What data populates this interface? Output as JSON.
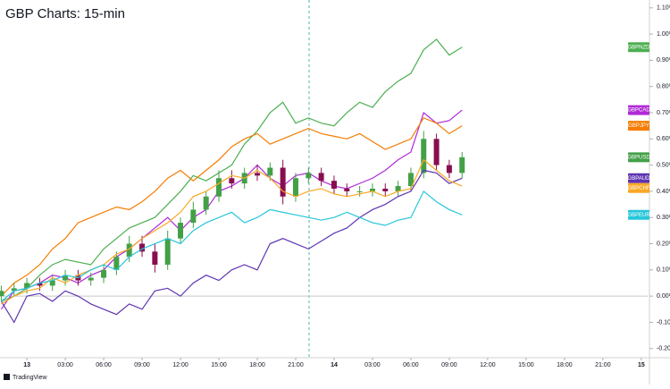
{
  "chart_data": {
    "type": "line",
    "title": "GBP Charts: 15-min",
    "footer": "TradingView",
    "x": [
      -2,
      -1,
      0,
      1,
      2,
      3,
      4,
      5,
      6,
      7,
      8,
      9,
      10,
      11,
      12,
      13,
      14,
      15,
      16,
      17,
      18,
      19,
      20,
      21,
      22,
      23,
      24,
      25,
      26,
      27,
      28,
      29,
      30,
      31,
      32,
      33,
      34
    ],
    "xlim": [
      -2.1,
      48.5
    ],
    "xticks": [
      {
        "value": 0,
        "label": "13"
      },
      {
        "value": 3,
        "label": "03:00"
      },
      {
        "value": 6,
        "label": "06:00"
      },
      {
        "value": 9,
        "label": "09:00"
      },
      {
        "value": 12,
        "label": "12:00"
      },
      {
        "value": 15,
        "label": "15:00"
      },
      {
        "value": 18,
        "label": "18:00"
      },
      {
        "value": 21,
        "label": "21:00"
      },
      {
        "value": 24,
        "label": "14"
      },
      {
        "value": 27,
        "label": "03:00"
      },
      {
        "value": 30,
        "label": "06:00"
      },
      {
        "value": 33,
        "label": "09:00"
      },
      {
        "value": 36,
        "label": "12:00"
      },
      {
        "value": 39,
        "label": "15:00"
      },
      {
        "value": 42,
        "label": "18:00"
      },
      {
        "value": 45,
        "label": "21:00"
      },
      {
        "value": 48,
        "label": "15"
      }
    ],
    "ylim": [
      -0.235,
      1.13
    ],
    "yticks": [
      {
        "value": 1.1,
        "label": "1.10%"
      },
      {
        "value": 1.0,
        "label": "1.00%"
      },
      {
        "value": 0.9,
        "label": "0.90%"
      },
      {
        "value": 0.8,
        "label": "0.80%"
      },
      {
        "value": 0.7,
        "label": "0.70%"
      },
      {
        "value": 0.6,
        "label": "0.60%"
      },
      {
        "value": 0.5,
        "label": "0.50%"
      },
      {
        "value": 0.4,
        "label": "0.40%"
      },
      {
        "value": 0.3,
        "label": "0.30%"
      },
      {
        "value": 0.2,
        "label": "0.20%"
      },
      {
        "value": 0.1,
        "label": "0.10%"
      },
      {
        "value": 0,
        "label": "0.00%"
      },
      {
        "value": -0.1,
        "label": "-0.10%"
      },
      {
        "value": -0.2,
        "label": "-0.20%"
      }
    ],
    "series": [
      {
        "name": "GBPNZD",
        "color": "#4caf50",
        "values": [
          -0.02,
          0.0,
          0.03,
          0.08,
          0.12,
          0.14,
          0.13,
          0.12,
          0.18,
          0.22,
          0.26,
          0.28,
          0.3,
          0.35,
          0.4,
          0.46,
          0.44,
          0.47,
          0.5,
          0.58,
          0.63,
          0.7,
          0.74,
          0.66,
          0.68,
          0.66,
          0.65,
          0.7,
          0.74,
          0.72,
          0.78,
          0.82,
          0.85,
          0.94,
          0.98,
          0.92,
          0.95
        ]
      },
      {
        "name": "GBPCAD",
        "color": "#b02ad8",
        "values": [
          -0.05,
          0.02,
          0.03,
          0.05,
          0.08,
          0.07,
          0.05,
          0.08,
          0.1,
          0.15,
          0.18,
          0.22,
          0.26,
          0.3,
          0.25,
          0.3,
          0.33,
          0.4,
          0.42,
          0.45,
          0.5,
          0.45,
          0.42,
          0.46,
          0.47,
          0.44,
          0.42,
          0.41,
          0.43,
          0.45,
          0.48,
          0.52,
          0.55,
          0.7,
          0.66,
          0.67,
          0.71
        ]
      },
      {
        "name": "GBPJPY",
        "color": "#f57c00",
        "values": [
          0.0,
          0.05,
          0.08,
          0.12,
          0.18,
          0.22,
          0.28,
          0.3,
          0.32,
          0.34,
          0.33,
          0.36,
          0.4,
          0.45,
          0.48,
          0.44,
          0.48,
          0.52,
          0.57,
          0.6,
          0.62,
          0.58,
          0.6,
          0.62,
          0.64,
          0.62,
          0.61,
          0.6,
          0.62,
          0.59,
          0.56,
          0.58,
          0.6,
          0.68,
          0.66,
          0.62,
          0.65
        ]
      },
      {
        "name": "GBPUSD",
        "type": "candlestick",
        "color": "#43a047",
        "down_color": "#880e4f",
        "open": [
          0.0,
          0.02,
          0.03,
          0.05,
          0.04,
          0.06,
          0.08,
          0.06,
          0.07,
          0.1,
          0.15,
          0.2,
          0.17,
          0.12,
          0.22,
          0.28,
          0.33,
          0.38,
          0.45,
          0.43,
          0.47,
          0.46,
          0.49,
          0.38,
          0.45,
          0.47,
          0.44,
          0.41,
          0.4,
          0.4,
          0.41,
          0.4,
          0.42,
          0.47,
          0.6,
          0.5,
          0.47
        ],
        "high": [
          0.04,
          0.05,
          0.07,
          0.07,
          0.08,
          0.1,
          0.1,
          0.09,
          0.12,
          0.17,
          0.23,
          0.23,
          0.2,
          0.25,
          0.3,
          0.36,
          0.4,
          0.48,
          0.48,
          0.49,
          0.5,
          0.51,
          0.52,
          0.47,
          0.49,
          0.49,
          0.46,
          0.43,
          0.42,
          0.43,
          0.43,
          0.44,
          0.49,
          0.63,
          0.62,
          0.52,
          0.55
        ],
        "low": [
          -0.02,
          0.0,
          0.01,
          0.02,
          0.02,
          0.04,
          0.04,
          0.04,
          0.05,
          0.08,
          0.13,
          0.15,
          0.09,
          0.1,
          0.2,
          0.26,
          0.31,
          0.36,
          0.41,
          0.41,
          0.44,
          0.44,
          0.35,
          0.36,
          0.43,
          0.42,
          0.39,
          0.38,
          0.38,
          0.38,
          0.38,
          0.38,
          0.4,
          0.45,
          0.48,
          0.45,
          0.45
        ],
        "close": [
          0.02,
          0.03,
          0.05,
          0.04,
          0.06,
          0.08,
          0.06,
          0.07,
          0.1,
          0.15,
          0.2,
          0.17,
          0.12,
          0.22,
          0.28,
          0.33,
          0.38,
          0.45,
          0.43,
          0.47,
          0.46,
          0.49,
          0.38,
          0.45,
          0.47,
          0.44,
          0.41,
          0.4,
          0.4,
          0.41,
          0.4,
          0.42,
          0.47,
          0.6,
          0.5,
          0.47,
          0.53
        ]
      },
      {
        "name": "GBPAUD",
        "color": "#5e35b1",
        "values": [
          -0.02,
          -0.1,
          0.0,
          0.01,
          -0.02,
          0.02,
          0.0,
          -0.03,
          -0.05,
          -0.07,
          -0.03,
          -0.05,
          0.02,
          0.03,
          0.0,
          0.05,
          0.08,
          0.06,
          0.1,
          0.12,
          0.1,
          0.2,
          0.22,
          0.2,
          0.18,
          0.21,
          0.24,
          0.26,
          0.3,
          0.33,
          0.35,
          0.38,
          0.4,
          0.48,
          0.47,
          0.43,
          0.45
        ]
      },
      {
        "name": "GBPCHF",
        "color": "#f9a825",
        "values": [
          -0.03,
          0.0,
          0.02,
          0.03,
          0.07,
          0.05,
          0.08,
          0.1,
          0.12,
          0.16,
          0.18,
          0.22,
          0.25,
          0.28,
          0.32,
          0.38,
          0.4,
          0.43,
          0.46,
          0.45,
          0.48,
          0.45,
          0.4,
          0.38,
          0.4,
          0.41,
          0.39,
          0.38,
          0.39,
          0.4,
          0.38,
          0.4,
          0.41,
          0.52,
          0.48,
          0.44,
          0.42
        ]
      },
      {
        "name": "GBPEUR",
        "color": "#26c6da",
        "values": [
          -0.02,
          0.02,
          0.03,
          0.05,
          0.06,
          0.08,
          0.07,
          0.1,
          0.12,
          0.1,
          0.15,
          0.18,
          0.2,
          0.22,
          0.2,
          0.25,
          0.28,
          0.3,
          0.32,
          0.28,
          0.3,
          0.33,
          0.32,
          0.31,
          0.3,
          0.29,
          0.3,
          0.32,
          0.3,
          0.28,
          0.27,
          0.29,
          0.3,
          0.4,
          0.36,
          0.33,
          0.31
        ]
      }
    ]
  }
}
